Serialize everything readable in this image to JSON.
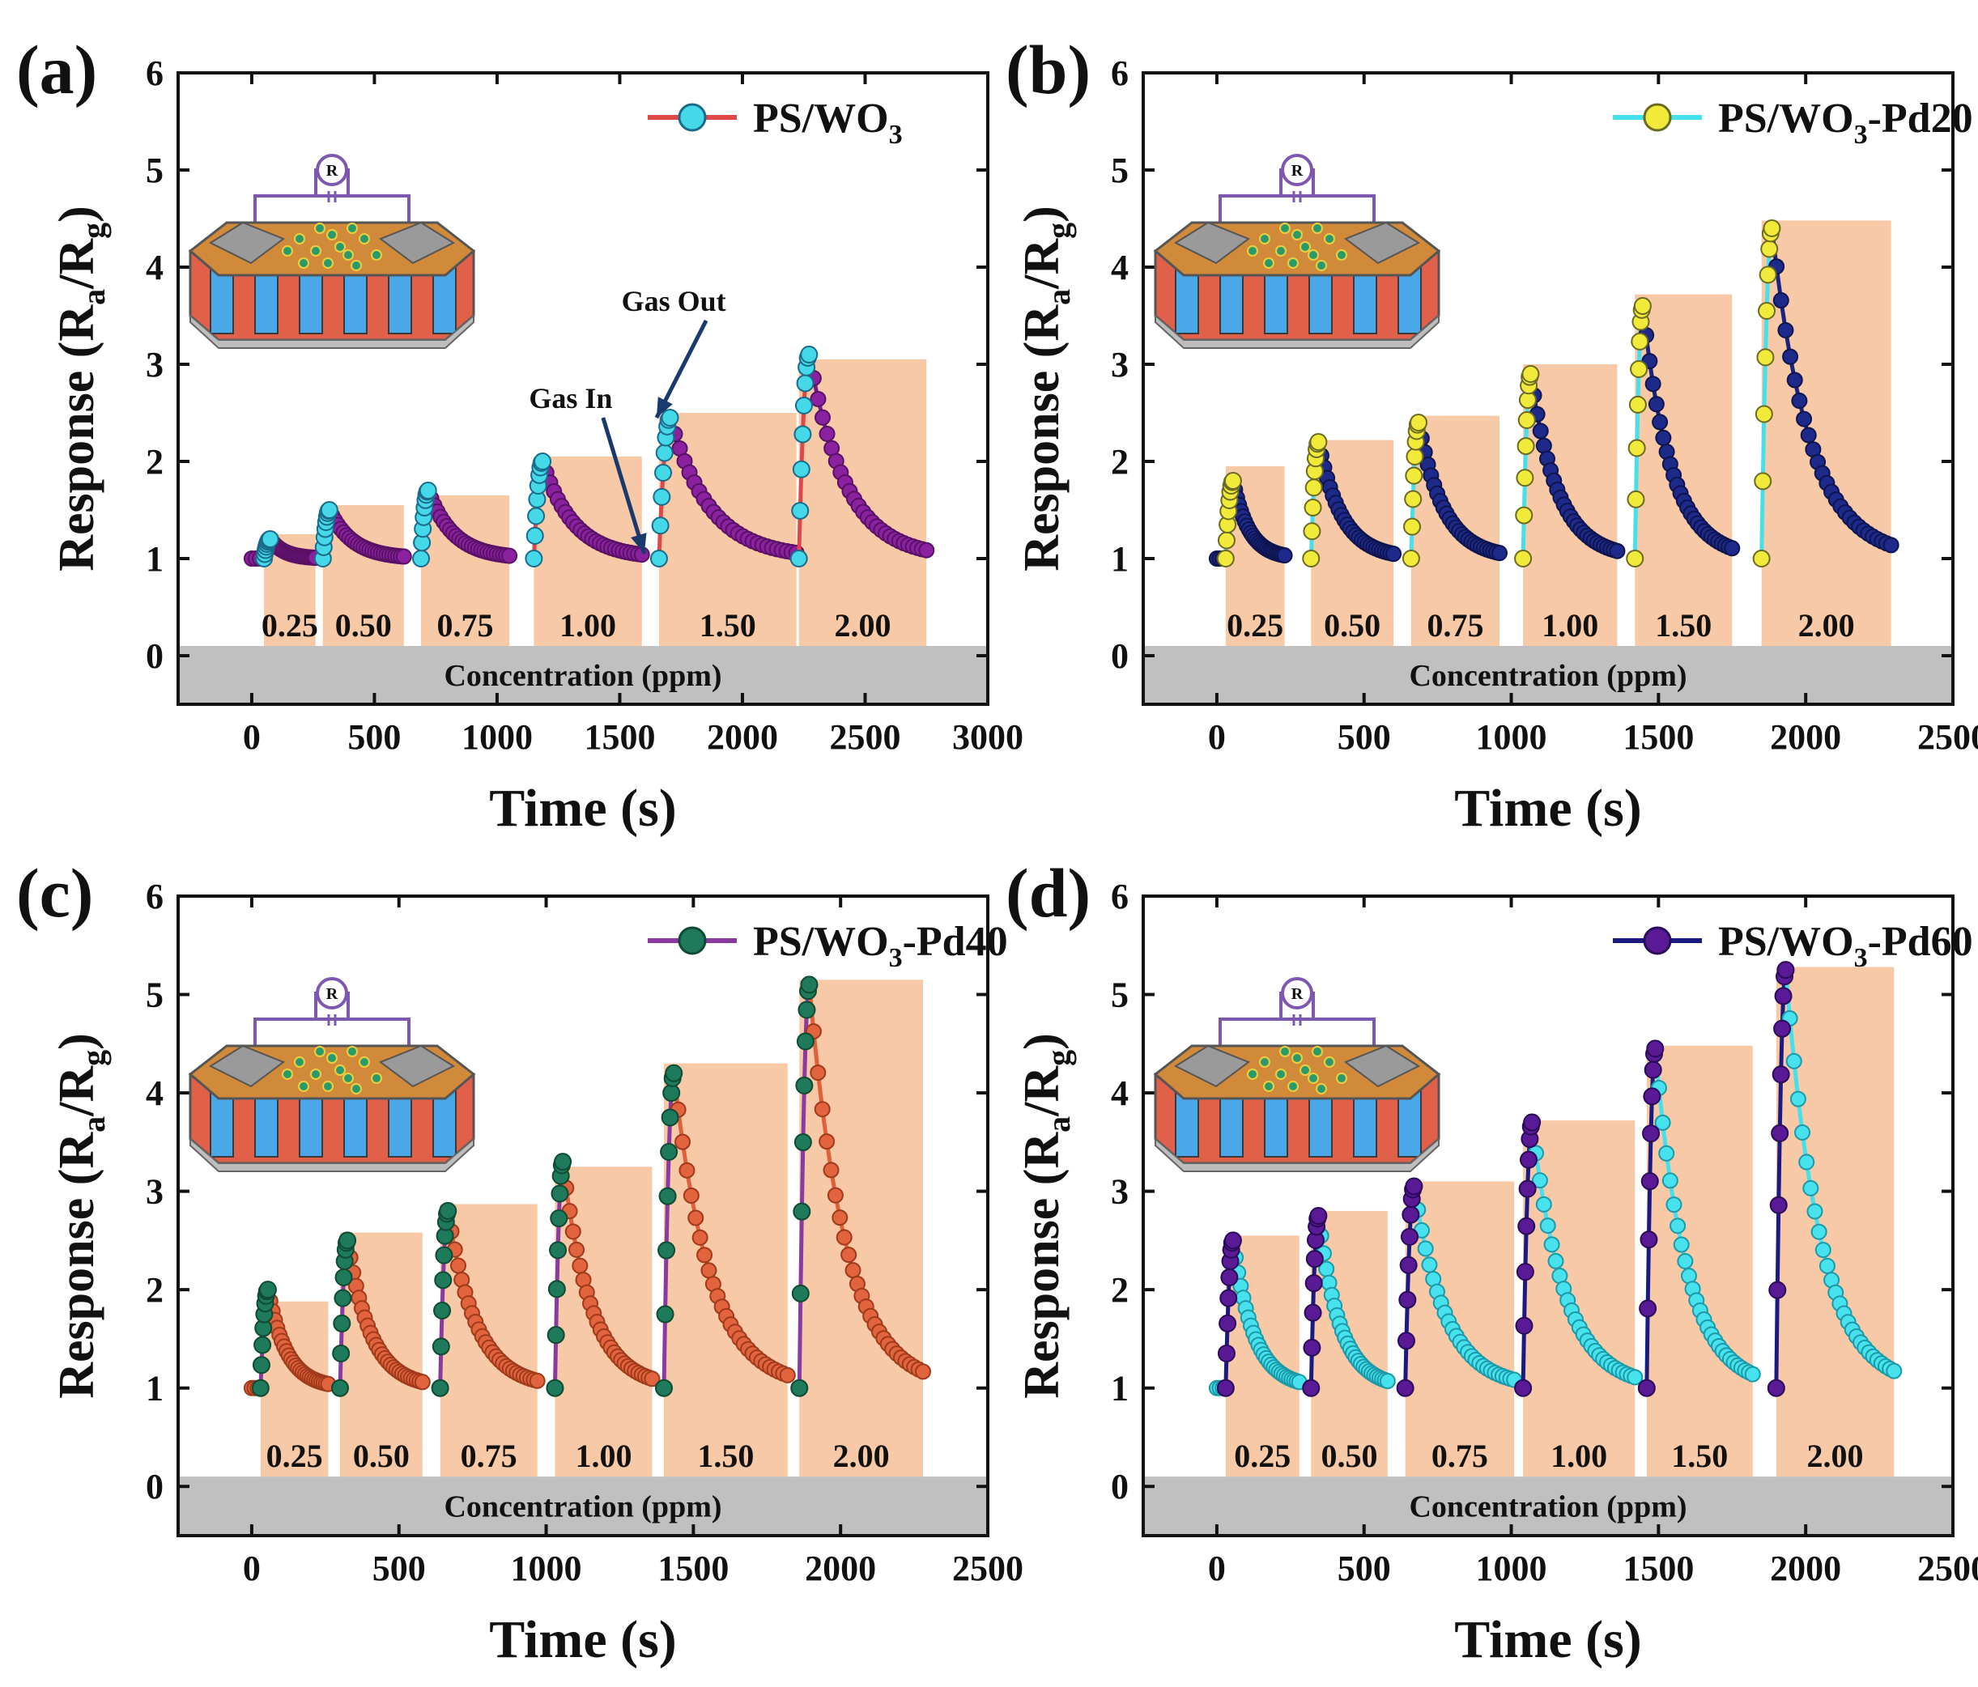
{
  "figure": {
    "colors": {
      "background": "#ffffff",
      "shade": "#f8c9a6",
      "concentration_band": "#c0c0c0",
      "axis": "#111111",
      "arrow": "#1a3a6e",
      "inset_outline": "#7d57b0"
    }
  },
  "chart_data": [
    {
      "panel": "(a)",
      "type": "line",
      "title": "",
      "xlabel": "Time (s)",
      "ylabel": "Response (R",
      "ylabel_sub_a": "a",
      "ylabel_mid": "/R",
      "ylabel_sub_g": "g",
      "ylabel_end": ")",
      "xlim": [
        -300,
        3000
      ],
      "ylim": [
        -0.5,
        6
      ],
      "xticks": [
        0,
        500,
        1000,
        1500,
        2000,
        2500,
        3000
      ],
      "xtick_labels": [
        "0",
        "500",
        "1000",
        "1500",
        "2000",
        "2500",
        "3000"
      ],
      "yticks": [
        0,
        1,
        2,
        3,
        4,
        5,
        6
      ],
      "ytick_labels": [
        "0",
        "1",
        "2",
        "3",
        "4",
        "5",
        "6"
      ],
      "legend": {
        "label": "PS/WO",
        "sub": "3",
        "suffix": "",
        "position": "top-right"
      },
      "series": [
        {
          "name": "rise",
          "line_color": "#e04848",
          "marker_fill": "#44d8e8",
          "marker_edge": "#1a6a8a"
        },
        {
          "name": "recovery",
          "line_color": "#7a1a86",
          "marker_fill": "#8a22a0",
          "marker_edge": "#5a1066"
        }
      ],
      "baseline": 1.0,
      "cycles": [
        {
          "t_in": 50,
          "t_out": 260,
          "peak": 1.2,
          "shade_height": 1.25,
          "label": "0.25"
        },
        {
          "t_in": 290,
          "t_out": 620,
          "peak": 1.5,
          "shade_height": 1.55,
          "label": "0.50"
        },
        {
          "t_in": 690,
          "t_out": 1050,
          "peak": 1.7,
          "shade_height": 1.65,
          "label": "0.75"
        },
        {
          "t_in": 1150,
          "t_out": 1590,
          "peak": 2.0,
          "shade_height": 2.05,
          "label": "1.00"
        },
        {
          "t_in": 1660,
          "t_out": 2220,
          "peak": 2.45,
          "shade_height": 2.5,
          "label": "1.50"
        },
        {
          "t_in": 2230,
          "t_out": 2750,
          "peak": 3.1,
          "shade_height": 3.05,
          "label": "2.00"
        }
      ],
      "concentration_band": {
        "label": "Concentration (ppm)",
        "ymin": -0.5,
        "ymax": 0.1
      },
      "annotations": [
        {
          "text": "Gas In",
          "text_x": 1300,
          "text_y": 2.55,
          "arrow_to_x": 1600,
          "arrow_to_y": 1.05
        },
        {
          "text": "Gas Out",
          "text_x": 1720,
          "text_y": 3.55,
          "arrow_to_x": 1650,
          "arrow_to_y": 2.45
        }
      ]
    },
    {
      "panel": "(b)",
      "type": "line",
      "title": "",
      "xlabel": "Time (s)",
      "ylabel": "Response (R",
      "ylabel_sub_a": "a",
      "ylabel_mid": "/R",
      "ylabel_sub_g": "g",
      "ylabel_end": ")",
      "xlim": [
        -250,
        2500
      ],
      "ylim": [
        -0.5,
        6
      ],
      "xticks": [
        0,
        500,
        1000,
        1500,
        2000,
        2500
      ],
      "xtick_labels": [
        "0",
        "500",
        "1000",
        "1500",
        "2000",
        "2500"
      ],
      "yticks": [
        0,
        1,
        2,
        3,
        4,
        5,
        6
      ],
      "ytick_labels": [
        "0",
        "1",
        "2",
        "3",
        "4",
        "5",
        "6"
      ],
      "legend": {
        "label": "PS/WO",
        "sub": "3",
        "suffix": "-Pd20",
        "position": "top-right"
      },
      "series": [
        {
          "name": "rise",
          "line_color": "#45e0ec",
          "marker_fill": "#f2ea3a",
          "marker_edge": "#6a6a20"
        },
        {
          "name": "recovery",
          "line_color": "#1a237e",
          "marker_fill": "#1e2a8a",
          "marker_edge": "#0d1450"
        }
      ],
      "baseline": 1.0,
      "cycles": [
        {
          "t_in": 30,
          "t_out": 230,
          "peak": 1.8,
          "shade_height": 1.95,
          "label": "0.25"
        },
        {
          "t_in": 320,
          "t_out": 600,
          "peak": 2.2,
          "shade_height": 2.22,
          "label": "0.50"
        },
        {
          "t_in": 660,
          "t_out": 960,
          "peak": 2.4,
          "shade_height": 2.47,
          "label": "0.75"
        },
        {
          "t_in": 1040,
          "t_out": 1360,
          "peak": 2.9,
          "shade_height": 3.0,
          "label": "1.00"
        },
        {
          "t_in": 1420,
          "t_out": 1750,
          "peak": 3.6,
          "shade_height": 3.72,
          "label": "1.50"
        },
        {
          "t_in": 1850,
          "t_out": 2290,
          "peak": 4.4,
          "shade_height": 4.48,
          "label": "2.00"
        }
      ],
      "concentration_band": {
        "label": "Concentration (ppm)",
        "ymin": -0.5,
        "ymax": 0.1
      },
      "annotations": []
    },
    {
      "panel": "(c)",
      "type": "line",
      "title": "",
      "xlabel": "Time (s)",
      "ylabel": "Response (R",
      "ylabel_sub_a": "a",
      "ylabel_mid": "/R",
      "ylabel_sub_g": "g",
      "ylabel_end": ")",
      "xlim": [
        -250,
        2500
      ],
      "ylim": [
        -0.5,
        6
      ],
      "xticks": [
        0,
        500,
        1000,
        1500,
        2000,
        2500
      ],
      "xtick_labels": [
        "0",
        "500",
        "1000",
        "1500",
        "2000",
        "2500"
      ],
      "yticks": [
        0,
        1,
        2,
        3,
        4,
        5,
        6
      ],
      "ytick_labels": [
        "0",
        "1",
        "2",
        "3",
        "4",
        "5",
        "6"
      ],
      "legend": {
        "label": "PS/WO",
        "sub": "3",
        "suffix": "-Pd40",
        "position": "top-right"
      },
      "series": [
        {
          "name": "rise",
          "line_color": "#8a3aa0",
          "marker_fill": "#1e7a5a",
          "marker_edge": "#0e4a34"
        },
        {
          "name": "recovery",
          "line_color": "#e0603a",
          "marker_fill": "#e2643e",
          "marker_edge": "#a03a1a"
        }
      ],
      "baseline": 1.0,
      "cycles": [
        {
          "t_in": 30,
          "t_out": 260,
          "peak": 2.0,
          "shade_height": 1.88,
          "label": "0.25"
        },
        {
          "t_in": 300,
          "t_out": 580,
          "peak": 2.5,
          "shade_height": 2.58,
          "label": "0.50"
        },
        {
          "t_in": 640,
          "t_out": 970,
          "peak": 2.8,
          "shade_height": 2.87,
          "label": "0.75"
        },
        {
          "t_in": 1030,
          "t_out": 1360,
          "peak": 3.3,
          "shade_height": 3.25,
          "label": "1.00"
        },
        {
          "t_in": 1400,
          "t_out": 1820,
          "peak": 4.2,
          "shade_height": 4.3,
          "label": "1.50"
        },
        {
          "t_in": 1860,
          "t_out": 2280,
          "peak": 5.1,
          "shade_height": 5.15,
          "label": "2.00"
        }
      ],
      "concentration_band": {
        "label": "Concentration (ppm)",
        "ymin": -0.5,
        "ymax": 0.1
      },
      "annotations": []
    },
    {
      "panel": "(d)",
      "type": "line",
      "title": "",
      "xlabel": "Time (s)",
      "ylabel": "Response (R",
      "ylabel_sub_a": "a",
      "ylabel_mid": "/R",
      "ylabel_sub_g": "g",
      "ylabel_end": ")",
      "xlim": [
        -250,
        2500
      ],
      "ylim": [
        -0.5,
        6
      ],
      "xticks": [
        0,
        500,
        1000,
        1500,
        2000,
        2500
      ],
      "xtick_labels": [
        "0",
        "500",
        "1000",
        "1500",
        "2000",
        "2500"
      ],
      "yticks": [
        0,
        1,
        2,
        3,
        4,
        5,
        6
      ],
      "ytick_labels": [
        "0",
        "1",
        "2",
        "3",
        "4",
        "5",
        "6"
      ],
      "legend": {
        "label": "PS/WO",
        "sub": "3",
        "suffix": "-Pd60",
        "position": "top-right"
      },
      "series": [
        {
          "name": "rise",
          "line_color": "#1a1a80",
          "marker_fill": "#5a1a96",
          "marker_edge": "#2a0a5a"
        },
        {
          "name": "recovery",
          "line_color": "#45e0ec",
          "marker_fill": "#48e2ee",
          "marker_edge": "#1a9aa8"
        }
      ],
      "baseline": 1.0,
      "cycles": [
        {
          "t_in": 30,
          "t_out": 280,
          "peak": 2.5,
          "shade_height": 2.55,
          "label": "0.25"
        },
        {
          "t_in": 320,
          "t_out": 580,
          "peak": 2.75,
          "shade_height": 2.8,
          "label": "0.50"
        },
        {
          "t_in": 640,
          "t_out": 1010,
          "peak": 3.05,
          "shade_height": 3.1,
          "label": "0.75"
        },
        {
          "t_in": 1040,
          "t_out": 1420,
          "peak": 3.7,
          "shade_height": 3.72,
          "label": "1.00"
        },
        {
          "t_in": 1460,
          "t_out": 1820,
          "peak": 4.45,
          "shade_height": 4.48,
          "label": "1.50"
        },
        {
          "t_in": 1900,
          "t_out": 2300,
          "peak": 5.25,
          "shade_height": 5.28,
          "label": "2.00"
        }
      ],
      "concentration_band": {
        "label": "Concentration (ppm)",
        "ymin": -0.5,
        "ymax": 0.1
      },
      "annotations": []
    }
  ]
}
